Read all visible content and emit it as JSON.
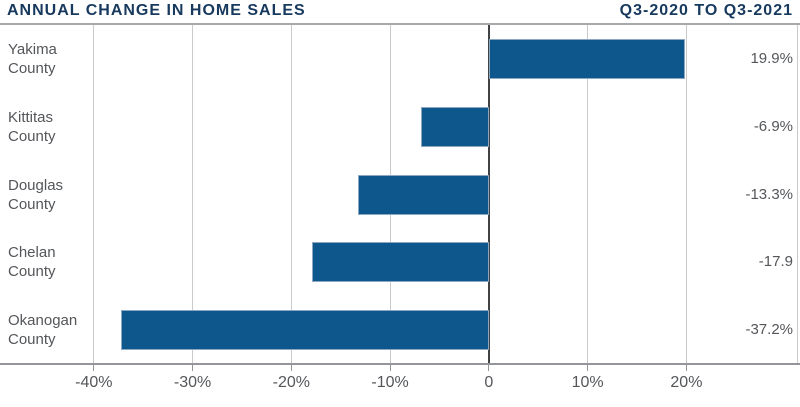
{
  "header": {
    "note": ""
  },
  "colors": {
    "bar_color": "#0e578c",
    "title_color": "#17395d",
    "text_color": "#54565a",
    "grid_color": "#c9cacc",
    "zero_line_color": "#414244",
    "axis_color": "#939598",
    "rule_color": "#a6a8ab"
  },
  "chart_data": {
    "type": "bar",
    "orientation": "horizontal",
    "title": "ANNUAL CHANGE IN HOME SALES",
    "subtitle": "Q3-2020 TO Q3-2021",
    "categories": [
      "Yakima County",
      "Kittitas County",
      "Douglas County",
      "Chelan County",
      "Okanogan County"
    ],
    "values": [
      19.9,
      -6.9,
      -13.3,
      -17.9,
      -37.2
    ],
    "value_labels": [
      "19.9%",
      "-6.9%",
      "-13.3%",
      "-17.9",
      "-37.2%"
    ],
    "xlabel": "",
    "ylabel": "",
    "xlim": [
      -49.5,
      31.5
    ],
    "x_ticks": [
      {
        "v": -40,
        "label": "-40%"
      },
      {
        "v": -30,
        "label": "-30%"
      },
      {
        "v": -20,
        "label": "-20%"
      },
      {
        "v": -10,
        "label": "-10%"
      },
      {
        "v": 0,
        "label": "0"
      },
      {
        "v": 10,
        "label": "10%"
      },
      {
        "v": 20,
        "label": "20%"
      }
    ],
    "grid": true,
    "legend": "none"
  }
}
